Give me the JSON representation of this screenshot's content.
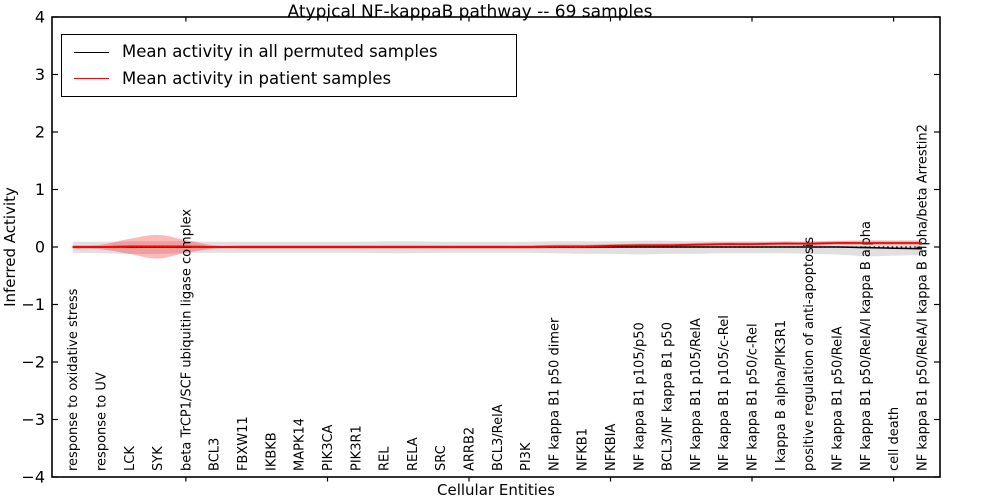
{
  "chart_data": {
    "type": "line",
    "title": "Atypical NF-kappaB pathway -- 69 samples",
    "xlabel": "Cellular Entities",
    "ylabel": "Inferred Activity",
    "ylim": [
      -4,
      4
    ],
    "ytick_values": [
      -4,
      -3,
      -2,
      -1,
      0,
      1,
      2,
      3,
      4
    ],
    "ytick_labels": [
      "−4",
      "−3",
      "−2",
      "−1",
      "0",
      "1",
      "2",
      "3",
      "4"
    ],
    "xtick_entity_numbers": [
      5,
      10,
      15,
      20,
      25,
      30
    ],
    "grid": false,
    "legend_position": "upper left",
    "categories": [
      "response to oxidative stress",
      "response to UV",
      "LCK",
      "SYK",
      "beta TrCP1/SCF ubiquitin ligase complex",
      "BCL3",
      "FBXW11",
      "IKBKB",
      "MAPK14",
      "PIK3CA",
      "PIK3R1",
      "REL",
      "RELA",
      "SRC",
      "ARRB2",
      "BCL3/RelA",
      "PI3K",
      "NF kappa B1 p50 dimer",
      "NFKB1",
      "NFKBIA",
      "NF kappa B1 p105/p50",
      "BCL3/NF kappa B1 p50",
      "NF kappa B1 p105/RelA",
      "NF kappa B1 p105/c-Rel",
      "NF kappa B1 p50/c-Rel",
      "I kappa B alpha/PIK3R1",
      "positive regulation of anti-apoptosis",
      "NF kappa B1 p50/RelA",
      "NF kappa B1 p50/RelA/I kappa B alpha",
      "cell death",
      "NF kappa B1 p50/RelA/I kappa B alpha/beta Arrestin2"
    ],
    "series": [
      {
        "name": "Mean activity in all permuted samples",
        "color": "#000000",
        "line_style": "solid",
        "band_color": "rgba(0,0,0,0.12)",
        "values": [
          0,
          0,
          0,
          0,
          0,
          0,
          0,
          0,
          0,
          0,
          0,
          0,
          0,
          0,
          0,
          0,
          0,
          0,
          0,
          0,
          0,
          0,
          0,
          0,
          0,
          0,
          0,
          0,
          -0.01,
          -0.02,
          -0.03
        ],
        "band_low": [
          -0.1,
          -0.11,
          -0.12,
          -0.12,
          -0.11,
          -0.1,
          -0.1,
          -0.1,
          -0.1,
          -0.1,
          -0.1,
          -0.11,
          -0.11,
          -0.1,
          -0.1,
          -0.1,
          -0.1,
          -0.11,
          -0.12,
          -0.12,
          -0.13,
          -0.12,
          -0.12,
          -0.11,
          -0.11,
          -0.11,
          -0.12,
          -0.13,
          -0.16,
          -0.15,
          -0.14
        ],
        "band_high": [
          0.09,
          0.09,
          0.1,
          0.1,
          0.1,
          0.09,
          0.09,
          0.09,
          0.09,
          0.09,
          0.09,
          0.1,
          0.1,
          0.09,
          0.09,
          0.09,
          0.09,
          0.1,
          0.1,
          0.1,
          0.11,
          0.11,
          0.1,
          0.1,
          0.1,
          0.1,
          0.1,
          0.11,
          0.12,
          0.12,
          0.12
        ]
      },
      {
        "name": "Mean activity in patient samples",
        "color": "#ff0000",
        "line_style": "solid",
        "band_color": "rgba(255,0,0,0.28)",
        "values": [
          0,
          0,
          0.01,
          0.01,
          0.01,
          0,
          0,
          0,
          0,
          0,
          0,
          0,
          0,
          0,
          0,
          0,
          0,
          0.01,
          0.01,
          0.02,
          0.03,
          0.03,
          0.04,
          0.05,
          0.05,
          0.06,
          0.06,
          0.07,
          0.07,
          0.07,
          0.07
        ],
        "band_low": [
          -0.03,
          -0.04,
          -0.12,
          -0.2,
          -0.1,
          -0.03,
          -0.03,
          -0.03,
          -0.03,
          -0.03,
          -0.03,
          -0.03,
          -0.03,
          -0.03,
          -0.03,
          -0.03,
          -0.03,
          -0.02,
          -0.02,
          -0.01,
          0,
          0.01,
          0.01,
          0.02,
          0.02,
          0.03,
          0.03,
          0.04,
          0.04,
          0.04,
          0.04
        ],
        "band_high": [
          0.03,
          0.04,
          0.14,
          0.21,
          0.12,
          0.03,
          0.03,
          0.03,
          0.03,
          0.03,
          0.03,
          0.03,
          0.03,
          0.03,
          0.03,
          0.03,
          0.03,
          0.04,
          0.04,
          0.05,
          0.06,
          0.06,
          0.07,
          0.08,
          0.08,
          0.09,
          0.09,
          0.1,
          0.1,
          0.1,
          0.1
        ]
      }
    ],
    "zero_line": {
      "value": 0,
      "style": "dotted",
      "color": "#000000"
    }
  }
}
